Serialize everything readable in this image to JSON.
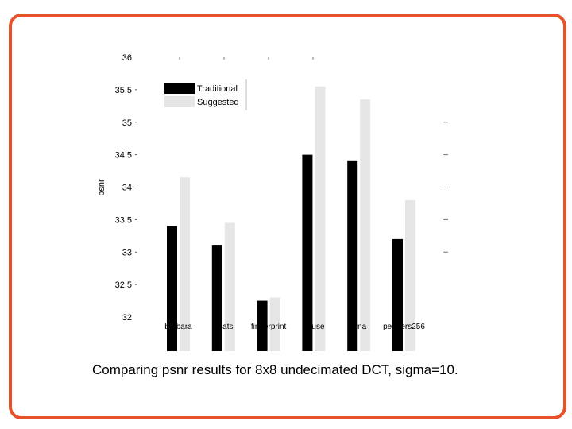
{
  "chart_data": {
    "type": "bar",
    "ylabel": "psnr",
    "xlabel": "",
    "title": "",
    "ylim": [
      32,
      36
    ],
    "yticks": [
      "32",
      "32.5",
      "33",
      "33.5",
      "34",
      "34.5",
      "35",
      "35.5",
      "36"
    ],
    "categories": [
      "barbara",
      "boats",
      "fingerprint",
      "house",
      "lena",
      "peppers256"
    ],
    "category_labels_visible": [
      "barbara",
      "boats",
      "fingerprint",
      "house",
      "lena",
      "peppers256"
    ],
    "series": [
      {
        "name": "Traditional",
        "values": [
          33.4,
          33.1,
          32.25,
          34.5,
          34.4,
          33.2
        ],
        "color": "#000000"
      },
      {
        "name": "Suggested",
        "values": [
          34.15,
          33.45,
          32.3,
          35.55,
          35.35,
          33.8
        ],
        "color": "#e6e6e6"
      }
    ],
    "legend_position": "top-left",
    "grid": false
  },
  "caption": "Comparing psnr results for 8x8 undecimated DCT, sigma=10.",
  "colors": {
    "frame": "#e8522a",
    "traditional": "#000000",
    "suggested": "#e6e6e6"
  }
}
